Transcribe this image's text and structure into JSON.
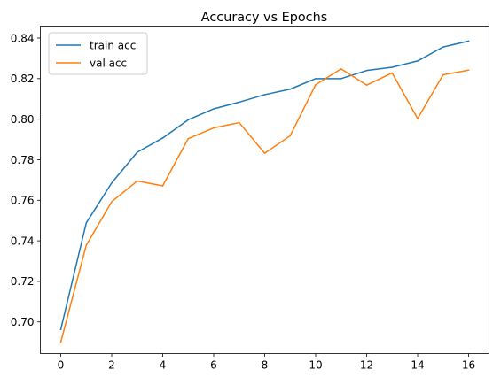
{
  "chart_data": {
    "type": "line",
    "title": "Accuracy vs Epochs",
    "xlabel": "",
    "ylabel": "",
    "xlim": [
      -0.8,
      16.8
    ],
    "ylim": [
      0.6844,
      0.8459
    ],
    "x_ticks": [
      0,
      2,
      4,
      6,
      8,
      10,
      12,
      14,
      16
    ],
    "y_ticks": [
      0.7,
      0.72,
      0.74,
      0.76,
      0.78,
      0.8,
      0.82,
      0.84
    ],
    "grid": false,
    "legend_position": "upper-left",
    "x": [
      0,
      1,
      2,
      3,
      4,
      5,
      6,
      7,
      8,
      9,
      10,
      11,
      12,
      13,
      14,
      15,
      16
    ],
    "series": [
      {
        "name": "train acc",
        "color": "#1f77b4",
        "values": [
          0.6963,
          0.7488,
          0.7686,
          0.7837,
          0.7907,
          0.7997,
          0.8051,
          0.8084,
          0.8121,
          0.8148,
          0.82,
          0.82,
          0.824,
          0.8256,
          0.8287,
          0.8356,
          0.8385
        ]
      },
      {
        "name": "val acc",
        "color": "#ff7f0e",
        "values": [
          0.69,
          0.7378,
          0.7593,
          0.7695,
          0.7671,
          0.7904,
          0.7957,
          0.7983,
          0.7832,
          0.7918,
          0.817,
          0.8248,
          0.8168,
          0.8228,
          0.8003,
          0.8219,
          0.8242
        ]
      }
    ]
  }
}
